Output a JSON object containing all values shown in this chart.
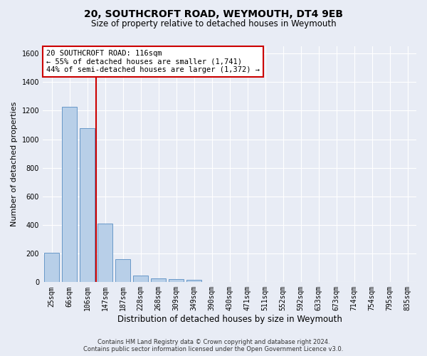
{
  "title": "20, SOUTHCROFT ROAD, WEYMOUTH, DT4 9EB",
  "subtitle": "Size of property relative to detached houses in Weymouth",
  "xlabel": "Distribution of detached houses by size in Weymouth",
  "ylabel": "Number of detached properties",
  "footer_line1": "Contains HM Land Registry data © Crown copyright and database right 2024.",
  "footer_line2": "Contains public sector information licensed under the Open Government Licence v3.0.",
  "categories": [
    "25sqm",
    "66sqm",
    "106sqm",
    "147sqm",
    "187sqm",
    "228sqm",
    "268sqm",
    "309sqm",
    "349sqm",
    "390sqm",
    "430sqm",
    "471sqm",
    "511sqm",
    "552sqm",
    "592sqm",
    "633sqm",
    "673sqm",
    "714sqm",
    "754sqm",
    "795sqm",
    "835sqm"
  ],
  "values": [
    205,
    1225,
    1075,
    410,
    162,
    45,
    26,
    20,
    15,
    0,
    0,
    0,
    0,
    0,
    0,
    0,
    0,
    0,
    0,
    0,
    0
  ],
  "bar_color": "#b8cfe8",
  "bar_edge_color": "#6898c8",
  "vline_x_index": 2.5,
  "vline_color": "#cc0000",
  "annotation_text": "20 SOUTHCROFT ROAD: 116sqm\n← 55% of detached houses are smaller (1,741)\n44% of semi-detached houses are larger (1,372) →",
  "annotation_box_color": "#ffffff",
  "annotation_box_edge_color": "#cc0000",
  "ylim": [
    0,
    1650
  ],
  "yticks": [
    0,
    200,
    400,
    600,
    800,
    1000,
    1200,
    1400,
    1600
  ],
  "bg_color": "#e8ecf5",
  "plot_bg_color": "#e8ecf5",
  "grid_color": "#ffffff",
  "title_fontsize": 10,
  "subtitle_fontsize": 8.5,
  "ylabel_fontsize": 8,
  "xlabel_fontsize": 8.5,
  "tick_fontsize": 7,
  "annotation_fontsize": 7.5,
  "footer_fontsize": 6
}
